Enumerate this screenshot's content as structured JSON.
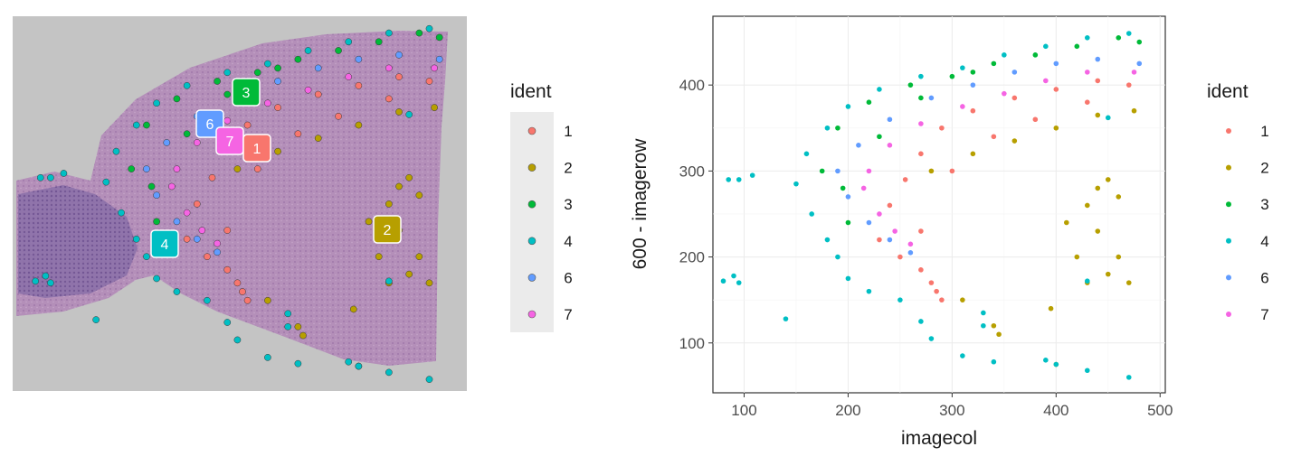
{
  "colors": {
    "1": "#F8766D",
    "2": "#B79F00",
    "3": "#00BA38",
    "4": "#00BFC4",
    "6": "#619CFF",
    "7": "#F564E3"
  },
  "tissue_panel": {
    "legend_title": "ident",
    "cluster_labels": [
      "3",
      "6",
      "7",
      "1",
      "4",
      "2"
    ],
    "legend": [
      "1",
      "2",
      "3",
      "4",
      "6",
      "7"
    ]
  },
  "chart_data": {
    "type": "scatter",
    "xlabel": "imagecol",
    "ylabel": "600 - imagerow",
    "xlim": [
      70,
      505
    ],
    "ylim": [
      42,
      480
    ],
    "x_ticks": [
      100,
      200,
      300,
      400,
      500
    ],
    "y_ticks": [
      100,
      200,
      300,
      400
    ],
    "x_tick_labels": [
      "100",
      "200",
      "300",
      "400",
      "500"
    ],
    "y_tick_labels": [
      "100",
      "200",
      "300",
      "400"
    ],
    "grid": true,
    "legend_title": "ident",
    "legend_position": "right",
    "series": [
      {
        "name": "1",
        "points": [
          [
            230,
            220
          ],
          [
            240,
            260
          ],
          [
            255,
            290
          ],
          [
            270,
            320
          ],
          [
            290,
            350
          ],
          [
            320,
            370
          ],
          [
            360,
            385
          ],
          [
            400,
            395
          ],
          [
            440,
            405
          ],
          [
            470,
            400
          ],
          [
            250,
            200
          ],
          [
            270,
            185
          ],
          [
            280,
            170
          ],
          [
            285,
            160
          ],
          [
            290,
            150
          ],
          [
            270,
            230
          ],
          [
            300,
            300
          ],
          [
            340,
            340
          ],
          [
            380,
            360
          ],
          [
            430,
            380
          ]
        ]
      },
      {
        "name": "2",
        "points": [
          [
            280,
            300
          ],
          [
            320,
            320
          ],
          [
            360,
            335
          ],
          [
            400,
            350
          ],
          [
            440,
            365
          ],
          [
            475,
            370
          ],
          [
            410,
            240
          ],
          [
            430,
            260
          ],
          [
            440,
            280
          ],
          [
            450,
            290
          ],
          [
            460,
            270
          ],
          [
            440,
            230
          ],
          [
            420,
            200
          ],
          [
            450,
            180
          ],
          [
            470,
            170
          ],
          [
            460,
            200
          ],
          [
            430,
            170
          ],
          [
            310,
            150
          ],
          [
            340,
            120
          ],
          [
            345,
            110
          ],
          [
            395,
            140
          ],
          [
            400,
            75
          ]
        ]
      },
      {
        "name": "3",
        "points": [
          [
            190,
            350
          ],
          [
            220,
            380
          ],
          [
            260,
            400
          ],
          [
            300,
            410
          ],
          [
            340,
            425
          ],
          [
            380,
            435
          ],
          [
            420,
            445
          ],
          [
            460,
            455
          ],
          [
            480,
            450
          ],
          [
            175,
            300
          ],
          [
            195,
            280
          ],
          [
            200,
            240
          ],
          [
            230,
            340
          ],
          [
            270,
            385
          ],
          [
            320,
            415
          ]
        ]
      },
      {
        "name": "4",
        "points": [
          [
            150,
            285
          ],
          [
            160,
            320
          ],
          [
            180,
            350
          ],
          [
            200,
            375
          ],
          [
            230,
            395
          ],
          [
            270,
            410
          ],
          [
            310,
            420
          ],
          [
            350,
            435
          ],
          [
            390,
            445
          ],
          [
            430,
            455
          ],
          [
            470,
            460
          ],
          [
            165,
            250
          ],
          [
            180,
            220
          ],
          [
            190,
            200
          ],
          [
            200,
            175
          ],
          [
            220,
            160
          ],
          [
            250,
            150
          ],
          [
            270,
            125
          ],
          [
            280,
            105
          ],
          [
            85,
            290
          ],
          [
            95,
            290
          ],
          [
            108,
            295
          ],
          [
            80,
            172
          ],
          [
            90,
            178
          ],
          [
            95,
            170
          ],
          [
            140,
            128
          ],
          [
            310,
            85
          ],
          [
            330,
            135
          ],
          [
            340,
            78
          ],
          [
            390,
            80
          ],
          [
            400,
            75
          ],
          [
            430,
            68
          ],
          [
            470,
            60
          ],
          [
            330,
            120
          ],
          [
            450,
            362
          ],
          [
            430,
            172
          ]
        ]
      },
      {
        "name": "6",
        "points": [
          [
            190,
            300
          ],
          [
            210,
            330
          ],
          [
            240,
            360
          ],
          [
            280,
            385
          ],
          [
            320,
            400
          ],
          [
            360,
            415
          ],
          [
            400,
            425
          ],
          [
            440,
            430
          ],
          [
            480,
            425
          ],
          [
            200,
            270
          ],
          [
            220,
            240
          ],
          [
            240,
            220
          ],
          [
            260,
            205
          ]
        ]
      },
      {
        "name": "7",
        "points": [
          [
            220,
            300
          ],
          [
            240,
            330
          ],
          [
            270,
            355
          ],
          [
            310,
            375
          ],
          [
            350,
            390
          ],
          [
            390,
            405
          ],
          [
            430,
            415
          ],
          [
            475,
            415
          ],
          [
            230,
            250
          ],
          [
            245,
            230
          ],
          [
            260,
            215
          ],
          [
            215,
            280
          ]
        ]
      }
    ]
  }
}
